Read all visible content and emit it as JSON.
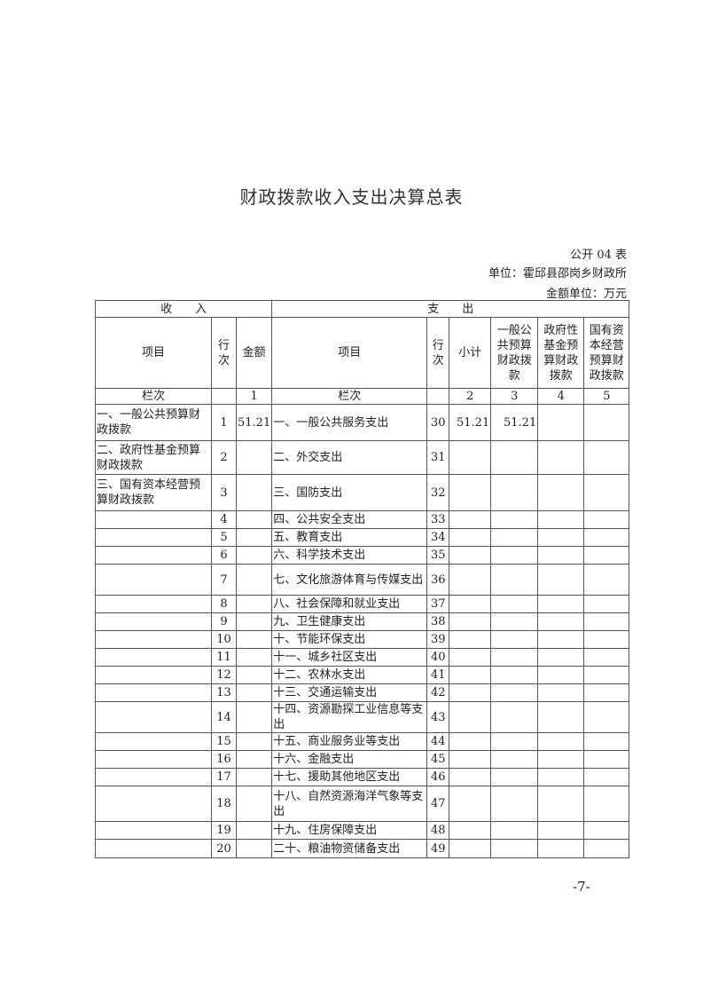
{
  "title": "财政拨款收入支出决算总表",
  "form_no": "公开 04 表",
  "unit": "单位：霍邱县邵岗乡财政所",
  "amount_unit": "金额单位：万元",
  "table": {
    "group_income": "收　　入",
    "group_expense": "支　　出",
    "headers": [
      "项目",
      "行次",
      "金额",
      "项目",
      "行次",
      "小计",
      "一般公共预算财政拨款",
      "政府性基金预算财政拨款",
      "国有资本经营预算财政拨款"
    ],
    "column_index_row": [
      "栏次",
      "",
      "1",
      "栏次",
      "",
      "2",
      "3",
      "4",
      "5"
    ],
    "rows": [
      [
        "一、一般公共预算财政拨款",
        "1",
        "51.21",
        "一、一般公共服务支出",
        "30",
        "51.21",
        "51.21",
        "",
        ""
      ],
      [
        "二、政府性基金预算财政拨款",
        "2",
        "",
        "二、外交支出",
        "31",
        "",
        "",
        "",
        ""
      ],
      [
        "三、国有资本经营预算财政拨款",
        "3",
        "",
        "三、国防支出",
        "32",
        "",
        "",
        "",
        ""
      ],
      [
        "",
        "4",
        "",
        "四、公共安全支出",
        "33",
        "",
        "",
        "",
        ""
      ],
      [
        "",
        "5",
        "",
        "五、教育支出",
        "34",
        "",
        "",
        "",
        ""
      ],
      [
        "",
        "6",
        "",
        "六、科学技术支出",
        "35",
        "",
        "",
        "",
        ""
      ],
      [
        "",
        "7",
        "",
        "七、文化旅游体育与传媒支出",
        "36",
        "",
        "",
        "",
        ""
      ],
      [
        "",
        "8",
        "",
        "八、社会保障和就业支出",
        "37",
        "",
        "",
        "",
        ""
      ],
      [
        "",
        "9",
        "",
        "九、卫生健康支出",
        "38",
        "",
        "",
        "",
        ""
      ],
      [
        "",
        "10",
        "",
        "十、节能环保支出",
        "39",
        "",
        "",
        "",
        ""
      ],
      [
        "",
        "11",
        "",
        "十一、城乡社区支出",
        "40",
        "",
        "",
        "",
        ""
      ],
      [
        "",
        "12",
        "",
        "十二、农林水支出",
        "41",
        "",
        "",
        "",
        ""
      ],
      [
        "",
        "13",
        "",
        "十三、交通运输支出",
        "42",
        "",
        "",
        "",
        ""
      ],
      [
        "",
        "14",
        "",
        "十四、资源勘探工业信息等支出",
        "43",
        "",
        "",
        "",
        ""
      ],
      [
        "",
        "15",
        "",
        "十五、商业服务业等支出",
        "44",
        "",
        "",
        "",
        ""
      ],
      [
        "",
        "16",
        "",
        "十六、金融支出",
        "45",
        "",
        "",
        "",
        ""
      ],
      [
        "",
        "17",
        "",
        "十七、援助其他地区支出",
        "46",
        "",
        "",
        "",
        ""
      ],
      [
        "",
        "18",
        "",
        "十八、自然资源海洋气象等支出",
        "47",
        "",
        "",
        "",
        ""
      ],
      [
        "",
        "19",
        "",
        "十九、住房保障支出",
        "48",
        "",
        "",
        "",
        ""
      ],
      [
        "",
        "20",
        "",
        "二十、粮油物资储备支出",
        "49",
        "",
        "",
        "",
        ""
      ]
    ]
  },
  "page_number": "-7-"
}
